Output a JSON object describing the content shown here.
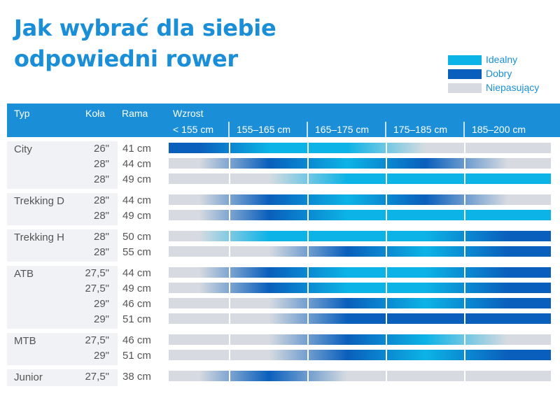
{
  "title_lines": [
    "Jak wybrać dla siebie",
    "odpowiedni rower"
  ],
  "colors": {
    "ideal": "#0cb3e6",
    "good": "#0a5fbc",
    "bad": "#d7dbe1",
    "header": "#1a8fd8",
    "title": "#1a8fd8",
    "group_bg": "#f0f2f5",
    "group_text": "#555555"
  },
  "legend": [
    {
      "label": "Idealny",
      "key": "ideal"
    },
    {
      "label": "Dobry",
      "key": "good"
    },
    {
      "label": "Niepasujący",
      "key": "bad"
    }
  ],
  "header": {
    "typ": "Typ",
    "kola": "Koła",
    "rama": "Rama",
    "wzrost": "Wzrost"
  },
  "chart_data": {
    "type": "heatmap",
    "title": "Jak wybrać dla siebie odpowiedni rower",
    "x_label": "Wzrost",
    "categories": [
      "< 155 cm",
      "155–165 cm",
      "165–175 cm",
      "175–185 cm",
      "185–200 cm"
    ],
    "legend_values": {
      "ideal": "Idealny",
      "good": "Dobry",
      "bad": "Niepasujący"
    },
    "groups": [
      {
        "type": "City",
        "rows": [
          {
            "wheel": "26\"",
            "frame": "41 cm",
            "ratings": [
              "good",
              "ideal",
              "ideal",
              "bad",
              "bad"
            ]
          },
          {
            "wheel": "28\"",
            "frame": "44 cm",
            "ratings": [
              "bad",
              "good",
              "ideal",
              "good",
              "bad"
            ]
          },
          {
            "wheel": "28\"",
            "frame": "49 cm",
            "ratings": [
              "bad",
              "bad",
              "ideal",
              "ideal",
              "ideal"
            ]
          }
        ]
      },
      {
        "type": "Trekking D",
        "rows": [
          {
            "wheel": "28\"",
            "frame": "44 cm",
            "ratings": [
              "bad",
              "good",
              "ideal",
              "good",
              "bad"
            ]
          },
          {
            "wheel": "28\"",
            "frame": "49 cm",
            "ratings": [
              "bad",
              "good",
              "ideal",
              "ideal",
              "ideal"
            ]
          }
        ]
      },
      {
        "type": "Trekking H",
        "rows": [
          {
            "wheel": "28\"",
            "frame": "50 cm",
            "ratings": [
              "bad",
              "ideal",
              "ideal",
              "ideal",
              "good"
            ]
          },
          {
            "wheel": "28\"",
            "frame": "55 cm",
            "ratings": [
              "bad",
              "bad",
              "good",
              "ideal",
              "good"
            ]
          }
        ]
      },
      {
        "type": "ATB",
        "rows": [
          {
            "wheel": "27,5\"",
            "frame": "44 cm",
            "ratings": [
              "bad",
              "good",
              "ideal",
              "ideal",
              "good"
            ]
          },
          {
            "wheel": "27,5\"",
            "frame": "49 cm",
            "ratings": [
              "bad",
              "good",
              "ideal",
              "ideal",
              "good"
            ]
          },
          {
            "wheel": "29\"",
            "frame": "46 cm",
            "ratings": [
              "bad",
              "bad",
              "good",
              "ideal",
              "good"
            ]
          },
          {
            "wheel": "29\"",
            "frame": "51 cm",
            "ratings": [
              "bad",
              "bad",
              "good",
              "good",
              "good"
            ]
          }
        ]
      },
      {
        "type": "MTB",
        "rows": [
          {
            "wheel": "27,5\"",
            "frame": "46 cm",
            "ratings": [
              "bad",
              "bad",
              "good",
              "ideal",
              "bad"
            ]
          },
          {
            "wheel": "29\"",
            "frame": "51 cm",
            "ratings": [
              "bad",
              "bad",
              "good",
              "ideal",
              "good"
            ]
          }
        ]
      },
      {
        "type": "Junior",
        "rows": [
          {
            "wheel": "27,5\"",
            "frame": "38 cm",
            "ratings": [
              "bad",
              "good",
              "bad",
              "bad",
              "bad"
            ]
          }
        ]
      }
    ]
  }
}
